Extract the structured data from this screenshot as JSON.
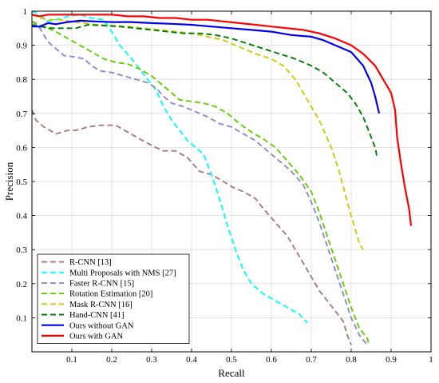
{
  "chart_data": {
    "type": "line",
    "title": "",
    "xlabel": "Recall",
    "ylabel": "Precision",
    "xlim": [
      0,
      1
    ],
    "ylim": [
      0,
      1
    ],
    "x_ticks": [
      0.1,
      0.2,
      0.3,
      0.4,
      0.5,
      0.6,
      0.7,
      0.8,
      0.9,
      1
    ],
    "x_tick_labels": [
      "0.1",
      "0.2",
      "0.3",
      "0.4",
      "0.5",
      "0.6",
      "0.7",
      "0.8",
      "0.9",
      "1"
    ],
    "y_ticks": [
      0.1,
      0.2,
      0.3,
      0.4,
      0.5,
      0.6,
      0.7,
      0.8,
      0.9,
      1
    ],
    "y_tick_labels": [
      "0.1",
      "0.2",
      "0.3",
      "0.4",
      "0.5",
      "0.6",
      "0.7",
      "0.8",
      "0.9",
      "1"
    ],
    "grid": true,
    "legend_position": "bottom-left",
    "series": [
      {
        "name": "R-CNN [13]",
        "color": "#a97a7a",
        "dash": "dashed",
        "points": [
          [
            0.0,
            0.71
          ],
          [
            0.01,
            0.68
          ],
          [
            0.03,
            0.66
          ],
          [
            0.06,
            0.64
          ],
          [
            0.09,
            0.65
          ],
          [
            0.11,
            0.65
          ],
          [
            0.14,
            0.66
          ],
          [
            0.17,
            0.665
          ],
          [
            0.21,
            0.665
          ],
          [
            0.24,
            0.645
          ],
          [
            0.27,
            0.625
          ],
          [
            0.31,
            0.6
          ],
          [
            0.33,
            0.59
          ],
          [
            0.36,
            0.59
          ],
          [
            0.39,
            0.57
          ],
          [
            0.42,
            0.53
          ],
          [
            0.45,
            0.52
          ],
          [
            0.48,
            0.5
          ],
          [
            0.5,
            0.485
          ],
          [
            0.53,
            0.47
          ],
          [
            0.56,
            0.45
          ],
          [
            0.58,
            0.42
          ],
          [
            0.61,
            0.38
          ],
          [
            0.64,
            0.34
          ],
          [
            0.66,
            0.3
          ],
          [
            0.68,
            0.26
          ],
          [
            0.7,
            0.22
          ],
          [
            0.72,
            0.18
          ],
          [
            0.74,
            0.15
          ],
          [
            0.76,
            0.12
          ],
          [
            0.78,
            0.09
          ],
          [
            0.79,
            0.05
          ],
          [
            0.8,
            0.02
          ]
        ]
      },
      {
        "name": "Multi Proposals with NMS [27]",
        "color": "#00ffff",
        "dash": "dashed",
        "points": [
          [
            0.0,
            1.0
          ],
          [
            0.02,
            0.99
          ],
          [
            0.04,
            0.97
          ],
          [
            0.06,
            0.975
          ],
          [
            0.09,
            0.985
          ],
          [
            0.12,
            0.99
          ],
          [
            0.15,
            0.98
          ],
          [
            0.18,
            0.975
          ],
          [
            0.2,
            0.94
          ],
          [
            0.22,
            0.9
          ],
          [
            0.25,
            0.86
          ],
          [
            0.27,
            0.83
          ],
          [
            0.29,
            0.8
          ],
          [
            0.31,
            0.77
          ],
          [
            0.33,
            0.72
          ],
          [
            0.35,
            0.68
          ],
          [
            0.37,
            0.65
          ],
          [
            0.39,
            0.62
          ],
          [
            0.41,
            0.6
          ],
          [
            0.43,
            0.58
          ],
          [
            0.45,
            0.52
          ],
          [
            0.47,
            0.45
          ],
          [
            0.49,
            0.37
          ],
          [
            0.51,
            0.3
          ],
          [
            0.53,
            0.24
          ],
          [
            0.55,
            0.2
          ],
          [
            0.58,
            0.17
          ],
          [
            0.61,
            0.15
          ],
          [
            0.64,
            0.13
          ],
          [
            0.67,
            0.11
          ],
          [
            0.69,
            0.085
          ]
        ]
      },
      {
        "name": "Faster R-CNN [15]",
        "color": "#8c8ccc",
        "dash": "dashed",
        "points": [
          [
            0.0,
            0.97
          ],
          [
            0.02,
            0.95
          ],
          [
            0.04,
            0.91
          ],
          [
            0.06,
            0.89
          ],
          [
            0.08,
            0.87
          ],
          [
            0.11,
            0.865
          ],
          [
            0.13,
            0.86
          ],
          [
            0.15,
            0.84
          ],
          [
            0.17,
            0.825
          ],
          [
            0.2,
            0.82
          ],
          [
            0.23,
            0.81
          ],
          [
            0.26,
            0.8
          ],
          [
            0.29,
            0.79
          ],
          [
            0.31,
            0.775
          ],
          [
            0.33,
            0.75
          ],
          [
            0.35,
            0.73
          ],
          [
            0.38,
            0.72
          ],
          [
            0.41,
            0.705
          ],
          [
            0.44,
            0.69
          ],
          [
            0.47,
            0.67
          ],
          [
            0.5,
            0.66
          ],
          [
            0.53,
            0.64
          ],
          [
            0.56,
            0.62
          ],
          [
            0.59,
            0.59
          ],
          [
            0.62,
            0.56
          ],
          [
            0.65,
            0.53
          ],
          [
            0.68,
            0.49
          ],
          [
            0.7,
            0.44
          ],
          [
            0.72,
            0.38
          ],
          [
            0.74,
            0.31
          ],
          [
            0.76,
            0.24
          ],
          [
            0.78,
            0.17
          ],
          [
            0.8,
            0.1
          ],
          [
            0.82,
            0.05
          ],
          [
            0.84,
            0.02
          ]
        ]
      },
      {
        "name": "Rotation Estimation [20]",
        "color": "#66cc00",
        "dash": "dashed",
        "points": [
          [
            0.0,
            0.97
          ],
          [
            0.02,
            0.96
          ],
          [
            0.04,
            0.95
          ],
          [
            0.06,
            0.94
          ],
          [
            0.09,
            0.92
          ],
          [
            0.12,
            0.9
          ],
          [
            0.15,
            0.88
          ],
          [
            0.18,
            0.86
          ],
          [
            0.21,
            0.85
          ],
          [
            0.24,
            0.845
          ],
          [
            0.27,
            0.83
          ],
          [
            0.3,
            0.81
          ],
          [
            0.33,
            0.78
          ],
          [
            0.35,
            0.76
          ],
          [
            0.37,
            0.74
          ],
          [
            0.4,
            0.735
          ],
          [
            0.43,
            0.73
          ],
          [
            0.46,
            0.72
          ],
          [
            0.49,
            0.7
          ],
          [
            0.52,
            0.67
          ],
          [
            0.55,
            0.645
          ],
          [
            0.58,
            0.625
          ],
          [
            0.61,
            0.6
          ],
          [
            0.64,
            0.56
          ],
          [
            0.67,
            0.52
          ],
          [
            0.7,
            0.47
          ],
          [
            0.72,
            0.41
          ],
          [
            0.74,
            0.34
          ],
          [
            0.76,
            0.27
          ],
          [
            0.78,
            0.2
          ],
          [
            0.8,
            0.13
          ],
          [
            0.82,
            0.07
          ],
          [
            0.84,
            0.04
          ],
          [
            0.845,
            0.02
          ]
        ]
      },
      {
        "name": "Mask R-CNN [16]",
        "color": "#cccc00",
        "dash": "dashed",
        "points": [
          [
            0.0,
            0.99
          ],
          [
            0.02,
            0.98
          ],
          [
            0.04,
            0.975
          ],
          [
            0.07,
            0.975
          ],
          [
            0.1,
            0.97
          ],
          [
            0.13,
            0.965
          ],
          [
            0.16,
            0.96
          ],
          [
            0.2,
            0.958
          ],
          [
            0.24,
            0.955
          ],
          [
            0.28,
            0.95
          ],
          [
            0.32,
            0.945
          ],
          [
            0.36,
            0.94
          ],
          [
            0.4,
            0.935
          ],
          [
            0.44,
            0.925
          ],
          [
            0.48,
            0.915
          ],
          [
            0.52,
            0.895
          ],
          [
            0.56,
            0.875
          ],
          [
            0.6,
            0.86
          ],
          [
            0.63,
            0.84
          ],
          [
            0.66,
            0.8
          ],
          [
            0.69,
            0.74
          ],
          [
            0.72,
            0.68
          ],
          [
            0.75,
            0.6
          ],
          [
            0.77,
            0.53
          ],
          [
            0.79,
            0.44
          ],
          [
            0.81,
            0.36
          ],
          [
            0.82,
            0.32
          ],
          [
            0.83,
            0.3
          ]
        ]
      },
      {
        "name": "Hand-CNN [41]",
        "color": "#007a00",
        "dash": "dashed",
        "points": [
          [
            0.0,
            0.96
          ],
          [
            0.02,
            0.955
          ],
          [
            0.05,
            0.95
          ],
          [
            0.08,
            0.95
          ],
          [
            0.11,
            0.95
          ],
          [
            0.14,
            0.96
          ],
          [
            0.18,
            0.958
          ],
          [
            0.22,
            0.955
          ],
          [
            0.26,
            0.95
          ],
          [
            0.3,
            0.945
          ],
          [
            0.34,
            0.94
          ],
          [
            0.38,
            0.935
          ],
          [
            0.42,
            0.935
          ],
          [
            0.46,
            0.93
          ],
          [
            0.5,
            0.92
          ],
          [
            0.54,
            0.905
          ],
          [
            0.58,
            0.89
          ],
          [
            0.62,
            0.875
          ],
          [
            0.66,
            0.86
          ],
          [
            0.7,
            0.84
          ],
          [
            0.73,
            0.82
          ],
          [
            0.76,
            0.79
          ],
          [
            0.79,
            0.76
          ],
          [
            0.81,
            0.73
          ],
          [
            0.83,
            0.69
          ],
          [
            0.85,
            0.63
          ],
          [
            0.86,
            0.6
          ],
          [
            0.865,
            0.57
          ]
        ]
      },
      {
        "name": "Ours without GAN",
        "color": "#0000ee",
        "dash": "solid",
        "points": [
          [
            0.0,
            0.955
          ],
          [
            0.02,
            0.955
          ],
          [
            0.04,
            0.965
          ],
          [
            0.06,
            0.962
          ],
          [
            0.09,
            0.968
          ],
          [
            0.12,
            0.972
          ],
          [
            0.16,
            0.97
          ],
          [
            0.2,
            0.968
          ],
          [
            0.25,
            0.968
          ],
          [
            0.3,
            0.965
          ],
          [
            0.35,
            0.963
          ],
          [
            0.4,
            0.96
          ],
          [
            0.45,
            0.955
          ],
          [
            0.5,
            0.95
          ],
          [
            0.55,
            0.945
          ],
          [
            0.6,
            0.94
          ],
          [
            0.65,
            0.93
          ],
          [
            0.7,
            0.925
          ],
          [
            0.73,
            0.915
          ],
          [
            0.76,
            0.9
          ],
          [
            0.8,
            0.88
          ],
          [
            0.83,
            0.84
          ],
          [
            0.85,
            0.79
          ],
          [
            0.86,
            0.75
          ],
          [
            0.87,
            0.7
          ]
        ]
      },
      {
        "name": "Ours with GAN",
        "color": "#ff0000",
        "dash": "solid",
        "points": [
          [
            0.0,
            0.99
          ],
          [
            0.02,
            0.985
          ],
          [
            0.04,
            0.99
          ],
          [
            0.06,
            0.99
          ],
          [
            0.09,
            0.99
          ],
          [
            0.12,
            0.99
          ],
          [
            0.16,
            0.99
          ],
          [
            0.2,
            0.99
          ],
          [
            0.24,
            0.985
          ],
          [
            0.28,
            0.985
          ],
          [
            0.32,
            0.98
          ],
          [
            0.36,
            0.98
          ],
          [
            0.4,
            0.975
          ],
          [
            0.44,
            0.975
          ],
          [
            0.48,
            0.97
          ],
          [
            0.52,
            0.965
          ],
          [
            0.56,
            0.96
          ],
          [
            0.6,
            0.955
          ],
          [
            0.64,
            0.95
          ],
          [
            0.68,
            0.945
          ],
          [
            0.72,
            0.935
          ],
          [
            0.76,
            0.92
          ],
          [
            0.8,
            0.9
          ],
          [
            0.83,
            0.875
          ],
          [
            0.86,
            0.84
          ],
          [
            0.88,
            0.8
          ],
          [
            0.9,
            0.76
          ],
          [
            0.91,
            0.71
          ],
          [
            0.915,
            0.63
          ],
          [
            0.925,
            0.55
          ],
          [
            0.935,
            0.48
          ],
          [
            0.945,
            0.42
          ],
          [
            0.95,
            0.37
          ]
        ]
      }
    ]
  }
}
